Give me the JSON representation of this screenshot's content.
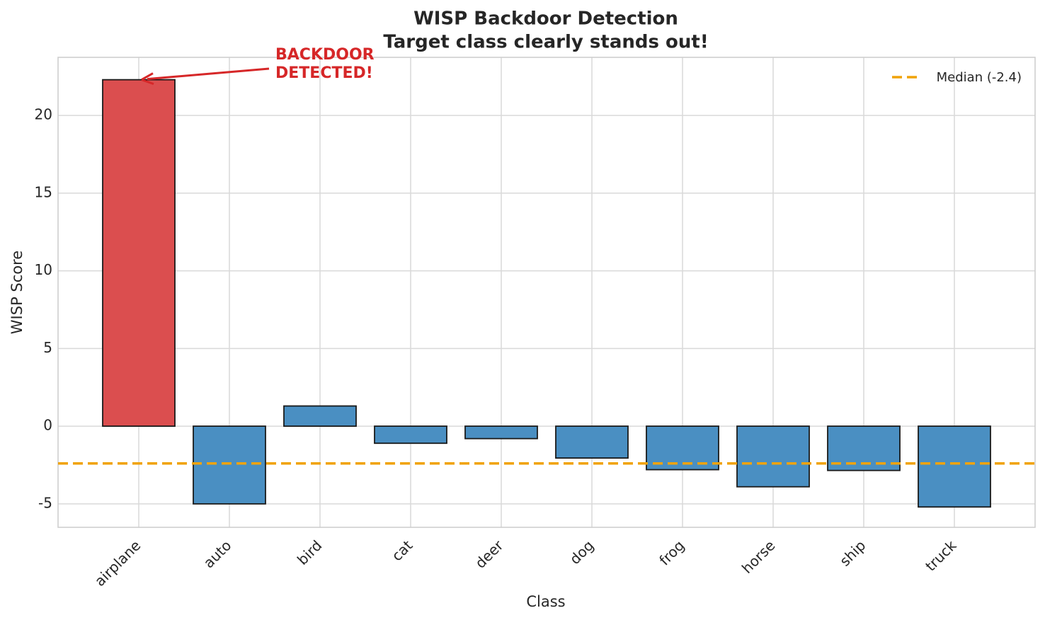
{
  "chart_data": {
    "type": "bar",
    "title": "WISP Backdoor Detection",
    "subtitle": "Target class clearly stands out!",
    "x_label": "Class",
    "y_label": "WISP Score",
    "categories": [
      "airplane",
      "auto",
      "bird",
      "cat",
      "deer",
      "dog",
      "frog",
      "horse",
      "ship",
      "truck"
    ],
    "values": [
      22.3,
      -5.0,
      1.3,
      -1.1,
      -0.8,
      -2.05,
      -2.8,
      -3.9,
      -2.85,
      -5.2
    ],
    "colors": [
      "#db4e4f",
      "#4a8fc2",
      "#4a8fc2",
      "#4a8fc2",
      "#4a8fc2",
      "#4a8fc2",
      "#4a8fc2",
      "#4a8fc2",
      "#4a8fc2",
      "#4a8fc2"
    ],
    "median": -2.4,
    "median_color": "#f0a30a",
    "legend_label": "Median (-2.4)",
    "legend_position": "upper right",
    "annotation": [
      "BACKDOOR",
      "DETECTED!"
    ],
    "annotation_color": "#d62728",
    "ylim": [
      -6.51,
      23.74
    ],
    "yticks": [
      -5,
      0,
      5,
      10,
      15,
      20
    ],
    "grid": true
  }
}
